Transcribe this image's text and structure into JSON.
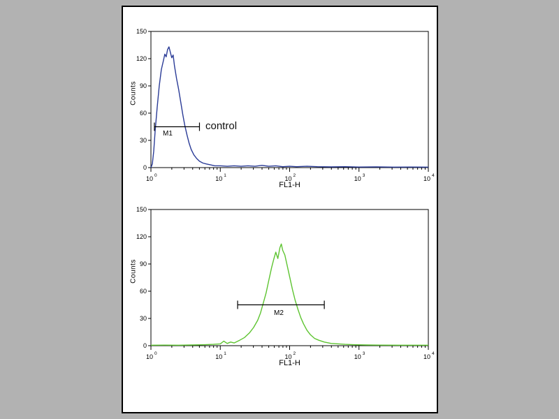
{
  "figure": {
    "background": "#b2b2b2",
    "panel_background": "#ffffff",
    "border_color": "#000000"
  },
  "chart_data": [
    {
      "type": "area",
      "name": "control-histogram",
      "title": "",
      "xlabel": "FL1-H",
      "ylabel": "Counts",
      "x_scale": "log10",
      "xlim_log": [
        0,
        4
      ],
      "ylim": [
        0,
        150
      ],
      "yticks": [
        0,
        30,
        60,
        90,
        120,
        150
      ],
      "xtick_exponents": [
        0,
        1,
        2,
        3,
        4
      ],
      "line_color": "#2b3c97",
      "marker": {
        "label": "M1",
        "annotation": "control",
        "from_log": 0.05,
        "to_log": 0.7,
        "y": 45,
        "caps": "both"
      },
      "points": [
        [
          0.0,
          0
        ],
        [
          0.02,
          4
        ],
        [
          0.04,
          18
        ],
        [
          0.06,
          40
        ],
        [
          0.09,
          66
        ],
        [
          0.12,
          90
        ],
        [
          0.15,
          108
        ],
        [
          0.18,
          118
        ],
        [
          0.2,
          125
        ],
        [
          0.22,
          122
        ],
        [
          0.24,
          130
        ],
        [
          0.26,
          133
        ],
        [
          0.28,
          127
        ],
        [
          0.3,
          121
        ],
        [
          0.32,
          124
        ],
        [
          0.34,
          112
        ],
        [
          0.37,
          98
        ],
        [
          0.4,
          86
        ],
        [
          0.43,
          72
        ],
        [
          0.46,
          58
        ],
        [
          0.49,
          46
        ],
        [
          0.52,
          36
        ],
        [
          0.55,
          27
        ],
        [
          0.58,
          20
        ],
        [
          0.62,
          14
        ],
        [
          0.66,
          10
        ],
        [
          0.7,
          7
        ],
        [
          0.75,
          5
        ],
        [
          0.8,
          4
        ],
        [
          0.86,
          3
        ],
        [
          0.92,
          2
        ],
        [
          1.0,
          2
        ],
        [
          1.1,
          1.5
        ],
        [
          1.2,
          2
        ],
        [
          1.3,
          1.5
        ],
        [
          1.4,
          2
        ],
        [
          1.5,
          1.5
        ],
        [
          1.6,
          2.5
        ],
        [
          1.7,
          1.5
        ],
        [
          1.8,
          2
        ],
        [
          1.9,
          1
        ],
        [
          2.0,
          1.5
        ],
        [
          2.1,
          1
        ],
        [
          2.25,
          1.5
        ],
        [
          2.4,
          1
        ],
        [
          2.6,
          0.8
        ],
        [
          2.8,
          1
        ],
        [
          3.0,
          0.6
        ],
        [
          3.25,
          0.8
        ],
        [
          3.5,
          0.5
        ],
        [
          3.75,
          0.6
        ],
        [
          4.0,
          0.5
        ]
      ]
    },
    {
      "type": "area",
      "name": "stained-histogram",
      "title": "",
      "xlabel": "FL1-H",
      "ylabel": "Counts",
      "x_scale": "log10",
      "xlim_log": [
        0,
        4
      ],
      "ylim": [
        0,
        150
      ],
      "yticks": [
        0,
        30,
        60,
        90,
        120,
        150
      ],
      "xtick_exponents": [
        0,
        1,
        2,
        3,
        4
      ],
      "line_color": "#5ec431",
      "marker": {
        "label": "M2",
        "annotation": "",
        "from_log": 1.25,
        "to_log": 2.5,
        "y": 45,
        "caps": "both"
      },
      "points": [
        [
          0.0,
          0.5
        ],
        [
          0.2,
          0.6
        ],
        [
          0.4,
          0.5
        ],
        [
          0.6,
          0.8
        ],
        [
          0.75,
          1
        ],
        [
          0.9,
          1.5
        ],
        [
          1.0,
          2
        ],
        [
          1.05,
          5
        ],
        [
          1.1,
          2.5
        ],
        [
          1.15,
          4
        ],
        [
          1.2,
          3
        ],
        [
          1.28,
          6
        ],
        [
          1.35,
          9
        ],
        [
          1.42,
          14
        ],
        [
          1.48,
          20
        ],
        [
          1.54,
          28
        ],
        [
          1.58,
          36
        ],
        [
          1.62,
          47
        ],
        [
          1.66,
          58
        ],
        [
          1.7,
          72
        ],
        [
          1.74,
          86
        ],
        [
          1.77,
          95
        ],
        [
          1.8,
          103
        ],
        [
          1.83,
          96
        ],
        [
          1.86,
          108
        ],
        [
          1.88,
          112
        ],
        [
          1.9,
          105
        ],
        [
          1.93,
          100
        ],
        [
          1.96,
          90
        ],
        [
          2.0,
          76
        ],
        [
          2.04,
          62
        ],
        [
          2.08,
          50
        ],
        [
          2.12,
          40
        ],
        [
          2.16,
          31
        ],
        [
          2.2,
          24
        ],
        [
          2.25,
          17
        ],
        [
          2.3,
          12
        ],
        [
          2.36,
          8
        ],
        [
          2.42,
          6
        ],
        [
          2.5,
          4
        ],
        [
          2.6,
          2.5
        ],
        [
          2.7,
          2
        ],
        [
          2.8,
          1.5
        ],
        [
          2.95,
          1
        ],
        [
          3.1,
          0.8
        ],
        [
          3.3,
          0.6
        ],
        [
          3.6,
          0.5
        ],
        [
          4.0,
          0.5
        ]
      ]
    }
  ]
}
